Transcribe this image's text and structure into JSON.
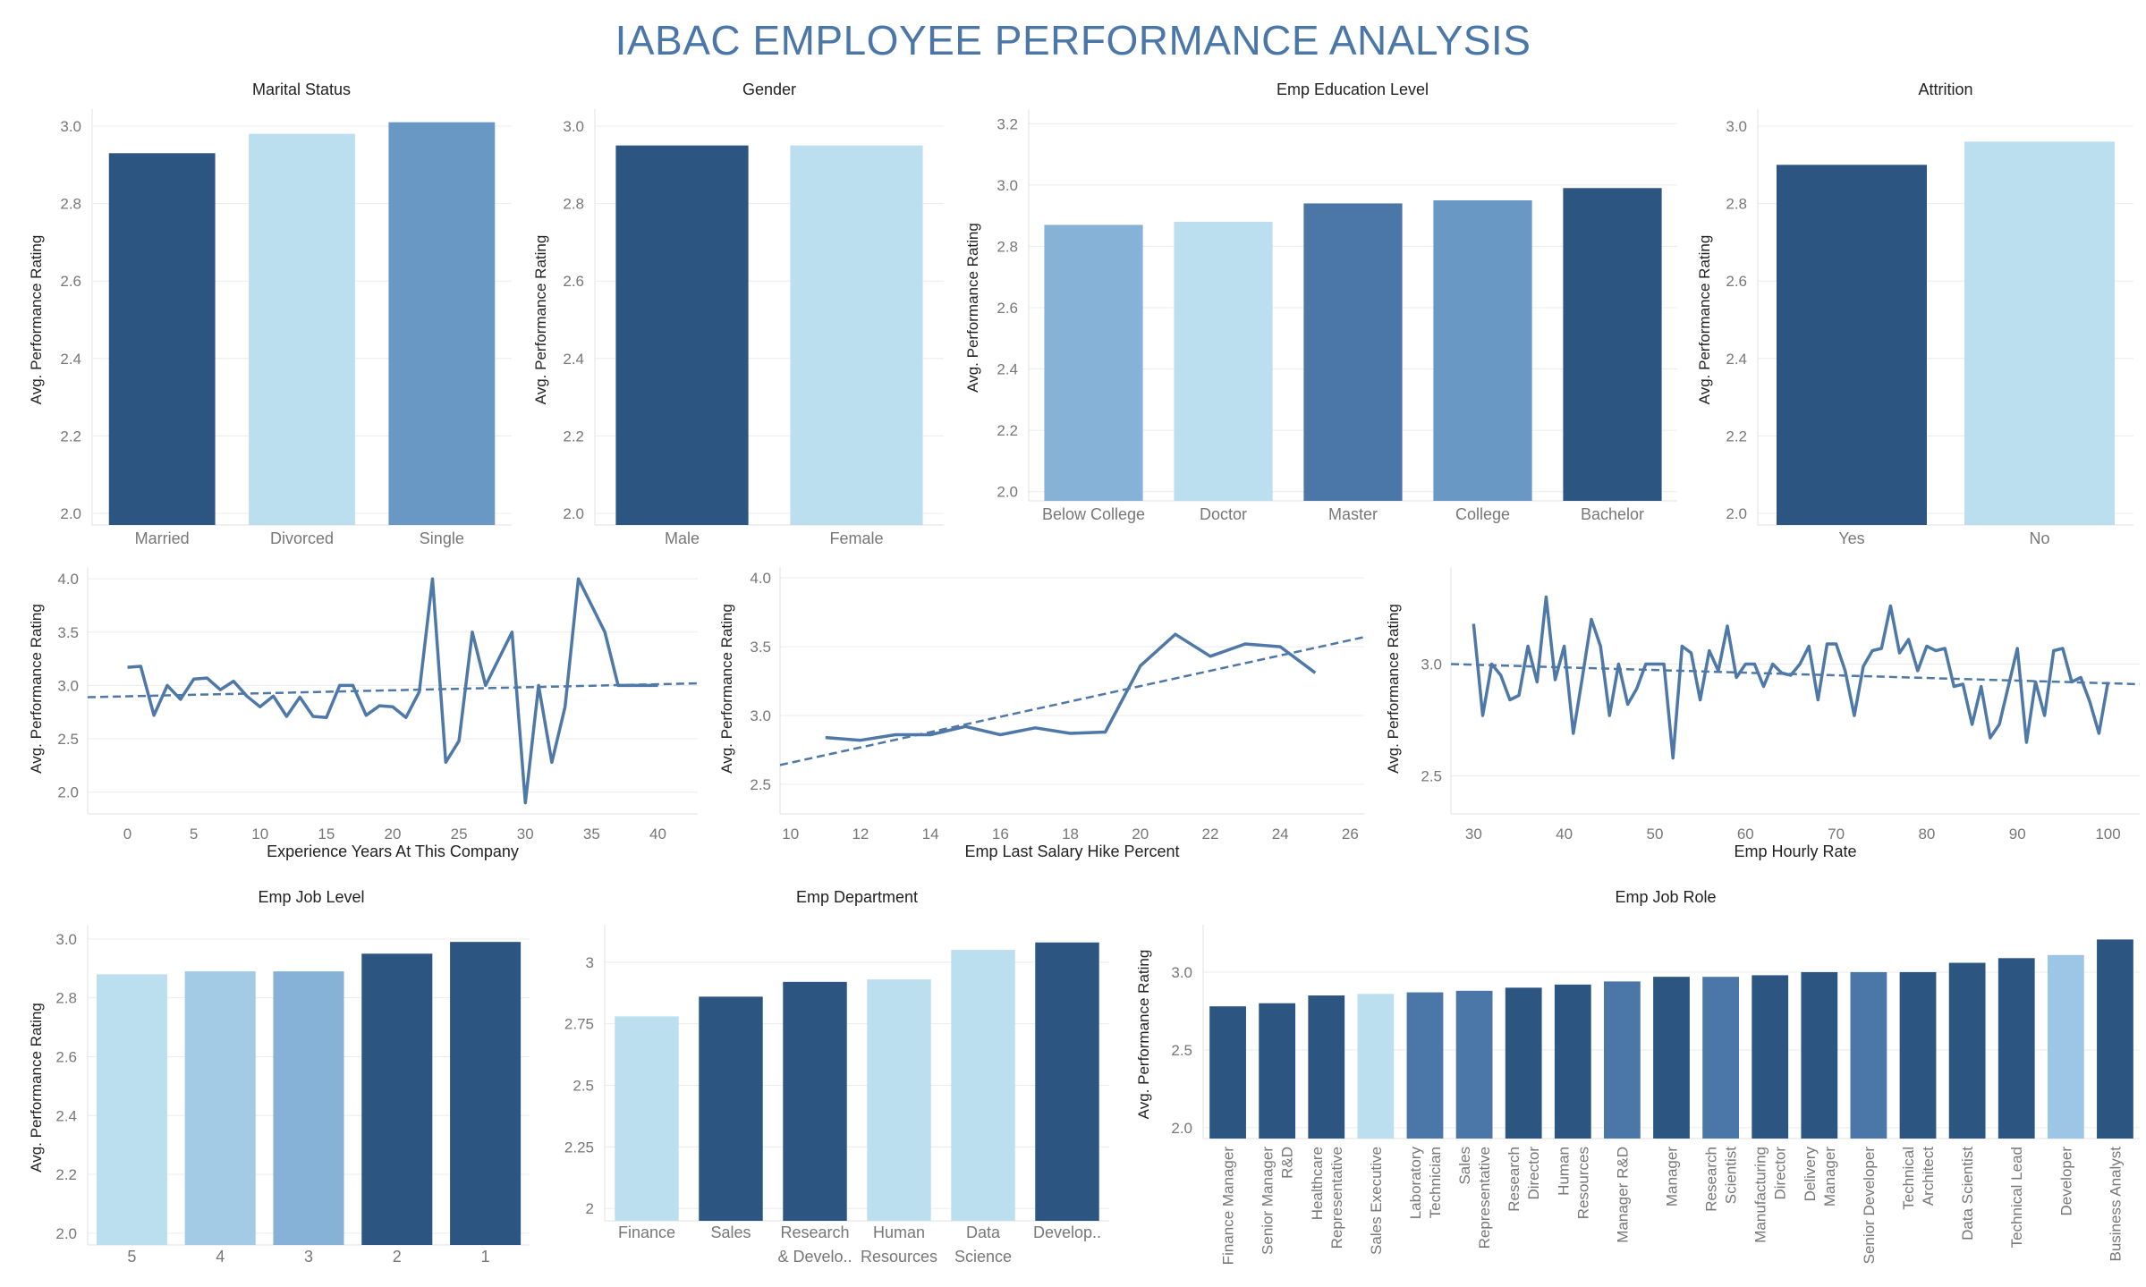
{
  "title": "IABAC EMPLOYEE PERFORMANCE ANALYSIS",
  "colors": {
    "title": "#4a76a8",
    "dark": "#2c5582",
    "mid": "#4a77a8",
    "midlight": "#6898c3",
    "light": "#86b2d8",
    "pale": "#bcdfef",
    "line": "#4e78a7",
    "grid": "#ececec"
  },
  "chart_data": [
    {
      "type": "bar",
      "title": "Marital Status",
      "ylabel": "Avg. Performance Rating",
      "categories": [
        "Married",
        "Divorced",
        "Single"
      ],
      "values": [
        2.93,
        2.98,
        3.01
      ],
      "colors": [
        "#2c5582",
        "#bcdfef",
        "#6898c3"
      ],
      "ylim": [
        1.97,
        3.03
      ],
      "yticks": [
        2.0,
        2.2,
        2.4,
        2.6,
        2.8,
        3.0
      ],
      "yticklabels": [
        "2.0",
        "2.2",
        "2.4",
        "2.6",
        "2.8",
        "3.0"
      ]
    },
    {
      "type": "bar",
      "title": "Gender",
      "ylabel": "Avg. Performance Rating",
      "categories": [
        "Male",
        "Female"
      ],
      "values": [
        2.95,
        2.95
      ],
      "colors": [
        "#2c5582",
        "#bcdfef"
      ],
      "ylim": [
        1.97,
        3.03
      ],
      "yticks": [
        2.0,
        2.2,
        2.4,
        2.6,
        2.8,
        3.0
      ],
      "yticklabels": [
        "2.0",
        "2.2",
        "2.4",
        "2.6",
        "2.8",
        "3.0"
      ]
    },
    {
      "type": "bar",
      "title": "Emp Education Level",
      "ylabel": "Avg. Performance Rating",
      "categories": [
        "Below College",
        "Doctor",
        "Master",
        "College",
        "Bachelor"
      ],
      "values": [
        2.87,
        2.88,
        2.94,
        2.95,
        2.99
      ],
      "colors": [
        "#86b2d8",
        "#bcdfef",
        "#4a77a8",
        "#6898c3",
        "#2c5582"
      ],
      "ylim": [
        1.97,
        3.23
      ],
      "yticks": [
        2.0,
        2.2,
        2.4,
        2.6,
        2.8,
        3.0,
        3.2
      ],
      "yticklabels": [
        "2.0",
        "2.2",
        "2.4",
        "2.6",
        "2.8",
        "3.0",
        "3.2"
      ]
    },
    {
      "type": "bar",
      "title": "Attrition",
      "ylabel": "Avg. Performance Rating",
      "categories": [
        "Yes",
        "No"
      ],
      "values": [
        2.9,
        2.96
      ],
      "colors": [
        "#2c5582",
        "#bcdfef"
      ],
      "ylim": [
        1.97,
        3.03
      ],
      "yticks": [
        2.0,
        2.2,
        2.4,
        2.6,
        2.8,
        3.0
      ],
      "yticklabels": [
        "2.0",
        "2.2",
        "2.4",
        "2.6",
        "2.8",
        "3.0"
      ]
    },
    {
      "type": "line",
      "title": "",
      "xlabel": "Experience Years At This Company",
      "ylabel": "Avg. Performance Rating",
      "x": [
        0,
        1,
        2,
        3,
        4,
        5,
        6,
        7,
        8,
        9,
        10,
        11,
        12,
        13,
        14,
        15,
        16,
        17,
        18,
        19,
        20,
        21,
        22,
        23,
        24,
        25,
        26,
        27,
        28,
        29,
        30,
        31,
        32,
        33,
        34,
        35,
        36,
        37,
        38,
        39,
        40
      ],
      "values": [
        3.17,
        3.18,
        2.72,
        3.0,
        2.87,
        3.06,
        3.07,
        2.96,
        3.04,
        2.9,
        2.8,
        2.9,
        2.71,
        2.89,
        2.71,
        2.7,
        3.0,
        3.0,
        2.72,
        2.81,
        2.8,
        2.7,
        2.94,
        4.0,
        2.28,
        2.48,
        3.5,
        3.0,
        3.25,
        3.5,
        1.9,
        3.0,
        2.28,
        2.8,
        4.0,
        3.75,
        3.5,
        3.0,
        3.0,
        3.0,
        3.0
      ],
      "trend": [
        2.89,
        3.02
      ],
      "xlim": [
        -3,
        43
      ],
      "ylim": [
        1.88,
        4.06
      ],
      "xticks": [
        0,
        5,
        10,
        15,
        20,
        25,
        30,
        35,
        40
      ],
      "xticklabels": [
        "0",
        "5",
        "10",
        "15",
        "20",
        "25",
        "30",
        "35",
        "40"
      ],
      "yticks": [
        2.0,
        2.5,
        3.0,
        3.5,
        4.0
      ],
      "yticklabels": [
        "2.0",
        "2.5",
        "3.0",
        "3.5",
        "4.0"
      ]
    },
    {
      "type": "line",
      "title": "",
      "xlabel": "Emp Last Salary Hike Percent",
      "ylabel": "Avg. Performance Rating",
      "x": [
        11,
        12,
        13,
        14,
        15,
        16,
        17,
        18,
        19,
        20,
        21,
        22,
        23,
        24,
        25
      ],
      "values": [
        2.84,
        2.82,
        2.86,
        2.86,
        2.92,
        2.86,
        2.91,
        2.87,
        2.88,
        3.36,
        3.59,
        3.43,
        3.52,
        3.5,
        3.31
      ],
      "trend": [
        2.64,
        3.57
      ],
      "xlim": [
        9.7,
        26.4
      ],
      "ylim": [
        2.35,
        4.04
      ],
      "xticks": [
        10,
        12,
        14,
        16,
        18,
        20,
        22,
        24,
        26
      ],
      "xticklabels": [
        "10",
        "12",
        "14",
        "16",
        "18",
        "20",
        "22",
        "24",
        "26"
      ],
      "yticks": [
        2.5,
        3.0,
        3.5,
        4.0
      ],
      "yticklabels": [
        "2.5",
        "3.0",
        "3.5",
        "4.0"
      ]
    },
    {
      "type": "line",
      "title": "",
      "xlabel": "Emp Hourly Rate",
      "ylabel": "Avg. Performance Rating",
      "x": [
        30,
        31,
        32,
        33,
        34,
        35,
        36,
        37,
        38,
        39,
        40,
        41,
        42,
        43,
        44,
        45,
        46,
        47,
        48,
        49,
        50,
        51,
        52,
        53,
        54,
        55,
        56,
        57,
        58,
        59,
        60,
        61,
        62,
        63,
        64,
        65,
        66,
        67,
        68,
        69,
        70,
        71,
        72,
        73,
        74,
        75,
        76,
        77,
        78,
        79,
        80,
        81,
        82,
        83,
        84,
        85,
        86,
        87,
        88,
        89,
        90,
        91,
        92,
        93,
        94,
        95,
        96,
        97,
        98,
        99,
        100
      ],
      "values": [
        3.18,
        2.77,
        3.0,
        2.95,
        2.84,
        2.86,
        3.08,
        2.92,
        3.3,
        2.93,
        3.08,
        2.69,
        2.94,
        3.2,
        3.08,
        2.77,
        3.0,
        2.82,
        2.89,
        3.0,
        3.0,
        3.0,
        2.58,
        3.08,
        3.05,
        2.84,
        3.06,
        2.97,
        3.17,
        2.94,
        3.0,
        3.0,
        2.9,
        3.0,
        2.96,
        2.95,
        3.0,
        3.08,
        2.84,
        3.09,
        3.09,
        2.97,
        2.77,
        2.99,
        3.06,
        3.07,
        3.26,
        3.05,
        3.11,
        2.97,
        3.08,
        3.06,
        3.07,
        2.9,
        2.91,
        2.73,
        2.9,
        2.67,
        2.73,
        2.9,
        3.07,
        2.65,
        2.92,
        2.77,
        3.06,
        3.07,
        2.92,
        2.94,
        2.83,
        2.69,
        2.92
      ],
      "trend": [
        3.0,
        2.91
      ],
      "xlim": [
        27.5,
        103.5
      ],
      "ylim": [
        2.37,
        3.41
      ],
      "xticks": [
        30,
        40,
        50,
        60,
        70,
        80,
        90,
        100
      ],
      "xticklabels": [
        "30",
        "40",
        "50",
        "60",
        "70",
        "80",
        "90",
        "100"
      ],
      "yticks": [
        2.5,
        3.0
      ],
      "yticklabels": [
        "2.5",
        "3.0"
      ]
    },
    {
      "type": "bar",
      "title": "Emp Job Level",
      "ylabel": "Avg. Performance Rating",
      "categories": [
        "5",
        "4",
        "3",
        "2",
        "1"
      ],
      "values": [
        2.88,
        2.89,
        2.89,
        2.95,
        2.99
      ],
      "colors": [
        "#bcdfef",
        "#a4cbe6",
        "#86b2d8",
        "#2c5582",
        "#2c5582"
      ],
      "ylim": [
        1.96,
        3.03
      ],
      "yticks": [
        2.0,
        2.2,
        2.4,
        2.6,
        2.8,
        3.0
      ],
      "yticklabels": [
        "2.0",
        "2.2",
        "2.4",
        "2.6",
        "2.8",
        "3.0"
      ]
    },
    {
      "type": "bar",
      "title": "Emp Department",
      "ylabel": "",
      "categories": [
        [
          "Finance"
        ],
        [
          "Sales"
        ],
        [
          "Research",
          "& Develo.."
        ],
        [
          "Human",
          "Resources"
        ],
        [
          "Data",
          "Science"
        ],
        [
          "Develop.."
        ]
      ],
      "values": [
        2.78,
        2.86,
        2.92,
        2.93,
        3.05,
        3.08
      ],
      "colors": [
        "#bcdfef",
        "#2c5582",
        "#2c5582",
        "#bcdfef",
        "#bcdfef",
        "#2c5582"
      ],
      "ylim": [
        1.95,
        3.13
      ],
      "yticks": [
        2.0,
        2.25,
        2.5,
        2.75,
        3.0
      ],
      "yticklabels": [
        "2",
        "2.25",
        "2.5",
        "2.75",
        "3"
      ]
    },
    {
      "type": "bar",
      "title": "Emp Job Role",
      "ylabel": "Avg. Performance Rating",
      "categories": [
        [
          "Finance Manager"
        ],
        [
          "Senior Manager",
          "R&D"
        ],
        [
          "Healthcare",
          "Representative"
        ],
        [
          "Sales Executive"
        ],
        [
          "Laboratory",
          "Technician"
        ],
        [
          "Sales",
          "Representative"
        ],
        [
          "Research",
          "Director"
        ],
        [
          "Human",
          "Resources"
        ],
        [
          "Manager R&D"
        ],
        [
          "Manager"
        ],
        [
          "Research",
          "Scientist"
        ],
        [
          "Manufacturing",
          "Director"
        ],
        [
          "Delivery",
          "Manager"
        ],
        [
          "Senior Developer"
        ],
        [
          "Technical",
          "Architect"
        ],
        [
          "Data Scientist"
        ],
        [
          "Technical Lead"
        ],
        [
          "Developer"
        ],
        [
          "Business Analyst"
        ]
      ],
      "values": [
        2.78,
        2.8,
        2.85,
        2.86,
        2.87,
        2.88,
        2.9,
        2.92,
        2.94,
        2.97,
        2.97,
        2.98,
        3.0,
        3.0,
        3.0,
        3.06,
        3.09,
        3.11,
        3.21
      ],
      "colors": [
        "#2c5582",
        "#2c5582",
        "#2c5582",
        "#bcdfef",
        "#4a77a8",
        "#4a77a8",
        "#2c5582",
        "#2c5582",
        "#4a77a8",
        "#2c5582",
        "#4a77a8",
        "#2c5582",
        "#2c5582",
        "#4a77a8",
        "#2c5582",
        "#2c5582",
        "#2c5582",
        "#9dc6e6",
        "#2c5582"
      ],
      "ylim": [
        1.93,
        3.27
      ],
      "yticks": [
        2.0,
        2.5,
        3.0
      ],
      "yticklabels": [
        "2.0",
        "2.5",
        "3.0"
      ]
    }
  ]
}
